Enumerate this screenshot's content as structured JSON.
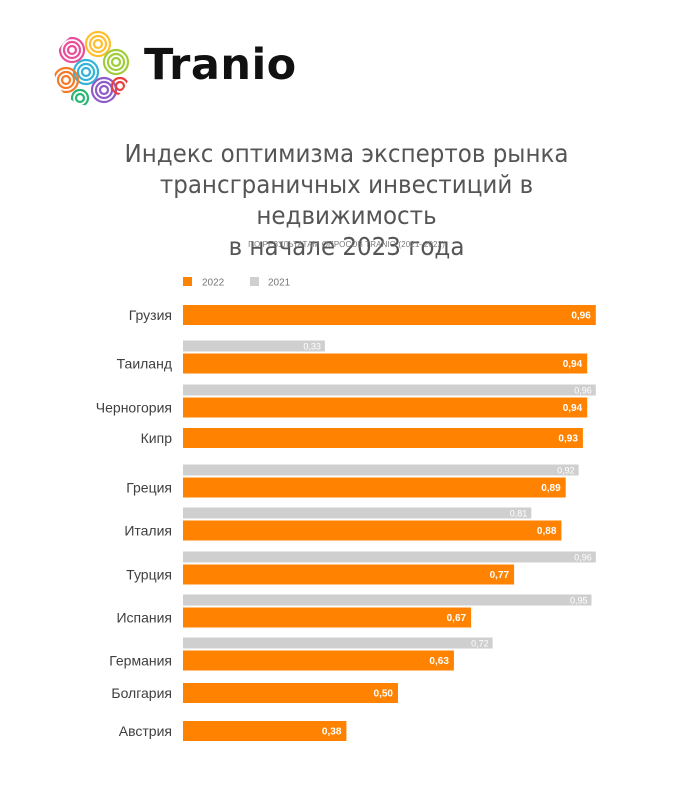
{
  "brand": {
    "name": "Tranio"
  },
  "chart_data": {
    "type": "bar",
    "orientation": "horizontal",
    "title": "Индекс оптимизма экспертов рынка трансграничных инвестиций в недвижимость в начале 2023 года",
    "title_lines": [
      "Индекс оптимизма экспертов рынка",
      "трансграничных инвестиций в недвижимость",
      "в начале 2023 года"
    ],
    "subtitle": "ПО РЕЗУЛЬТАТАМ ОПРОСОВ TRANIO (2021–2022)",
    "categories": [
      "Грузия",
      "Таиланд",
      "Черногория",
      "Кипр",
      "Греция",
      "Италия",
      "Турция",
      "Испания",
      "Германия",
      "Болгария",
      "Австрия"
    ],
    "series": [
      {
        "name": "2022",
        "color": "#ff8200",
        "values": [
          0.96,
          0.94,
          0.94,
          0.93,
          0.89,
          0.88,
          0.77,
          0.67,
          0.63,
          0.5,
          0.38
        ],
        "labels": [
          "0,96",
          "0,94",
          "0,94",
          "0,93",
          "0,89",
          "0,88",
          "0,77",
          "0,67",
          "0,63",
          "0,50",
          "0,38"
        ]
      },
      {
        "name": "2021",
        "color": "#cfcfcf",
        "values": [
          null,
          0.33,
          0.96,
          null,
          0.92,
          0.81,
          0.96,
          0.95,
          0.72,
          null,
          null
        ],
        "labels": [
          null,
          "0,33",
          "0,96",
          null,
          "0,92",
          "0,81",
          "0,96",
          "0,95",
          "0,72",
          null,
          null
        ]
      }
    ],
    "xlim": [
      0,
      1
    ],
    "grid": false,
    "legend_position": "top-left"
  }
}
